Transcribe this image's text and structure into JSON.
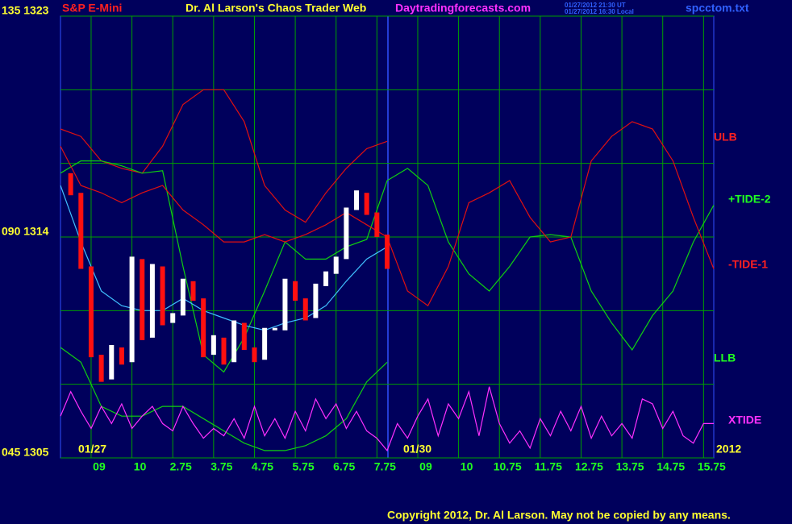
{
  "chart_data": {
    "type": "line",
    "header": {
      "symbol": "S&P E-Mini",
      "title": "Dr. Al Larson's Chaos Trader Web",
      "site": "Daytradingforecasts.com",
      "time_ut": "01/27/2012 21:30 UT",
      "time_local": "01/27/2012 16:30 Local",
      "file": "spcctom.txt"
    },
    "copyright": "Copyright 2012, Dr. Al Larson. May not be copied by any means.",
    "date_labels": [
      "01/27",
      "01/30",
      "2012"
    ],
    "xlim": [
      0,
      16
    ],
    "xticks": [
      {
        "value": 0.75,
        "label": "09"
      },
      {
        "value": 1.75,
        "label": "10"
      },
      2.75,
      3.75,
      4.75,
      5.75,
      6.75,
      7.75,
      {
        "value": 8.75,
        "label": "09"
      },
      {
        "value": 9.75,
        "label": "10"
      },
      10.75,
      11.75,
      12.75,
      13.75,
      14.75,
      15.75
    ],
    "ylim": [
      1305,
      1323
    ],
    "yticks": [
      {
        "value": 1305,
        "label": "045 1305"
      },
      {
        "value": 1314,
        "label": "090 1314"
      },
      {
        "value": 1323,
        "label": "135 1323"
      }
    ],
    "ygrid": [
      1305,
      1308,
      1311,
      1314,
      1317,
      1320,
      1323
    ],
    "grid_color": "#00a000",
    "x": [
      0,
      0.5,
      1,
      1.5,
      2,
      2.5,
      3,
      3.5,
      4,
      4.5,
      5,
      5.5,
      6,
      6.5,
      7,
      7.5,
      8,
      8.5,
      9,
      9.5,
      10,
      10.5,
      11,
      11.5,
      12,
      12.5,
      13,
      13.5,
      14,
      14.5,
      15,
      15.5,
      16
    ],
    "series": [
      {
        "name": "ULB",
        "color": "#e01010",
        "values": [
          1318.4,
          1318.1,
          1317.1,
          1316.8,
          1316.6,
          1317.7,
          1319.4,
          1320.0,
          1320.0,
          1318.7,
          1316.1,
          1315.1,
          1314.6,
          1315.8,
          1316.8,
          1317.6,
          1317.9,
          null,
          null,
          null,
          null,
          null,
          null,
          null,
          null,
          null,
          null,
          null,
          null,
          null,
          null,
          null,
          null
        ]
      },
      {
        "name": "+TIDE-2",
        "color": "#10d010",
        "values": [
          1316.6,
          1317.1,
          1317.1,
          1316.9,
          1316.6,
          1316.7,
          1312.8,
          1309.2,
          1308.5,
          1309.9,
          1311.8,
          1313.8,
          1313.1,
          1313.1,
          1313.6,
          1313.9,
          1316.3,
          1316.8,
          1316.1,
          1313.8,
          1312.5,
          1311.8,
          1312.8,
          1314.0,
          1314.1,
          1314.0,
          1311.8,
          1310.5,
          1309.4,
          1310.8,
          1311.8,
          1313.8,
          1315.3
        ]
      },
      {
        "name": "-TIDE-1",
        "color": "#e01010",
        "values": [
          1317.7,
          1316.1,
          1315.8,
          1315.4,
          1315.8,
          1316.1,
          1315.1,
          1314.5,
          1313.8,
          1313.8,
          1314.1,
          1313.8,
          1314.1,
          1314.5,
          1315.0,
          1314.5,
          1314.0,
          1311.8,
          1311.2,
          1312.8,
          1315.4,
          1315.8,
          1316.3,
          1314.8,
          1313.8,
          1314.0,
          1317.1,
          1318.1,
          1318.7,
          1318.4,
          1317.1,
          1314.8,
          1312.7
        ]
      },
      {
        "name": "LLB",
        "color": "#10d010",
        "values": [
          1309.5,
          1308.9,
          1307.1,
          1306.7,
          1306.7,
          1307.1,
          1307.1,
          1306.6,
          1306.1,
          1305.6,
          1305.3,
          1305.3,
          1305.5,
          1305.9,
          1306.6,
          1308.1,
          1308.9,
          null,
          null,
          null,
          null,
          null,
          null,
          null,
          null,
          null,
          null,
          null,
          null,
          null,
          null,
          null,
          null
        ]
      },
      {
        "name": "XTIDE",
        "color": "#ff30ff",
        "x": [
          0,
          0.25,
          0.5,
          0.75,
          1,
          1.25,
          1.5,
          1.75,
          2,
          2.25,
          2.5,
          2.75,
          3,
          3.25,
          3.5,
          3.75,
          4,
          4.25,
          4.5,
          4.75,
          5,
          5.25,
          5.5,
          5.75,
          6,
          6.25,
          6.5,
          6.75,
          7,
          7.25,
          7.5,
          7.75,
          8,
          8.25,
          8.5,
          8.75,
          9,
          9.25,
          9.5,
          9.75,
          10,
          10.25,
          10.5,
          10.75,
          11,
          11.25,
          11.5,
          11.75,
          12,
          12.25,
          12.5,
          12.75,
          13,
          13.25,
          13.5,
          13.75,
          14,
          14.25,
          14.5,
          14.75,
          15,
          15.25,
          15.5,
          15.75,
          16
        ],
        "values": [
          1306.7,
          1307.7,
          1306.9,
          1306.2,
          1307.1,
          1306.4,
          1307.2,
          1306.2,
          1306.7,
          1307.1,
          1306.4,
          1306.1,
          1307.1,
          1306.4,
          1305.8,
          1306.2,
          1305.9,
          1306.6,
          1305.8,
          1307.1,
          1305.9,
          1306.6,
          1305.8,
          1306.9,
          1306.1,
          1307.4,
          1306.6,
          1307.2,
          1306.2,
          1306.9,
          1306.1,
          1305.8,
          1305.3,
          1306.4,
          1305.8,
          1306.7,
          1307.4,
          1305.9,
          1307.2,
          1306.6,
          1307.7,
          1305.9,
          1307.9,
          1306.4,
          1305.6,
          1306.1,
          1305.4,
          1306.6,
          1305.9,
          1306.9,
          1306.1,
          1307.1,
          1305.8,
          1306.7,
          1305.9,
          1306.4,
          1305.8,
          1307.4,
          1307.2,
          1306.2,
          1306.9,
          1305.9,
          1305.6,
          1306.4,
          1306.4
        ]
      },
      {
        "color": "#40c0ff",
        "values": [
          1316.1,
          1313.8,
          1311.8,
          1311.2,
          1311.0,
          1311.0,
          1311.5,
          1311.0,
          1310.7,
          1310.4,
          1310.2,
          1310.5,
          1310.7,
          1311.2,
          1312.2,
          1313.1,
          1313.6,
          null,
          null,
          null,
          null,
          null,
          null,
          null,
          null,
          null,
          null,
          null,
          null,
          null,
          null,
          null,
          null
        ]
      },
      {
        "style": "bars",
        "color": "#ffffff",
        "down_color": "#ff1010",
        "x": [
          0,
          0.25,
          0.5,
          0.75,
          1,
          1.25,
          1.5,
          1.75,
          2,
          2.25,
          2.5,
          2.75,
          3,
          3.25,
          3.5,
          3.75,
          4,
          4.25,
          4.5,
          4.75,
          5,
          5.25,
          5.5,
          5.75,
          6,
          6.25,
          6.5,
          6.75,
          7,
          7.25,
          7.5,
          7.75,
          8
        ],
        "values": [
          1316.6,
          1315.8,
          1312.8,
          1309.2,
          1308.2,
          1309.5,
          1308.9,
          1313.1,
          1309.9,
          1312.8,
          1310.5,
          1310.8,
          1312.2,
          1311.5,
          1309.2,
          1309.9,
          1308.9,
          1310.5,
          1309.5,
          1309.0,
          1310.2,
          1310.2,
          1312.2,
          1311.5,
          1310.7,
          1312.0,
          1312.5,
          1313.1,
          1315.1,
          1315.8,
          1315.0,
          1314.1,
          1312.8
        ]
      }
    ]
  }
}
